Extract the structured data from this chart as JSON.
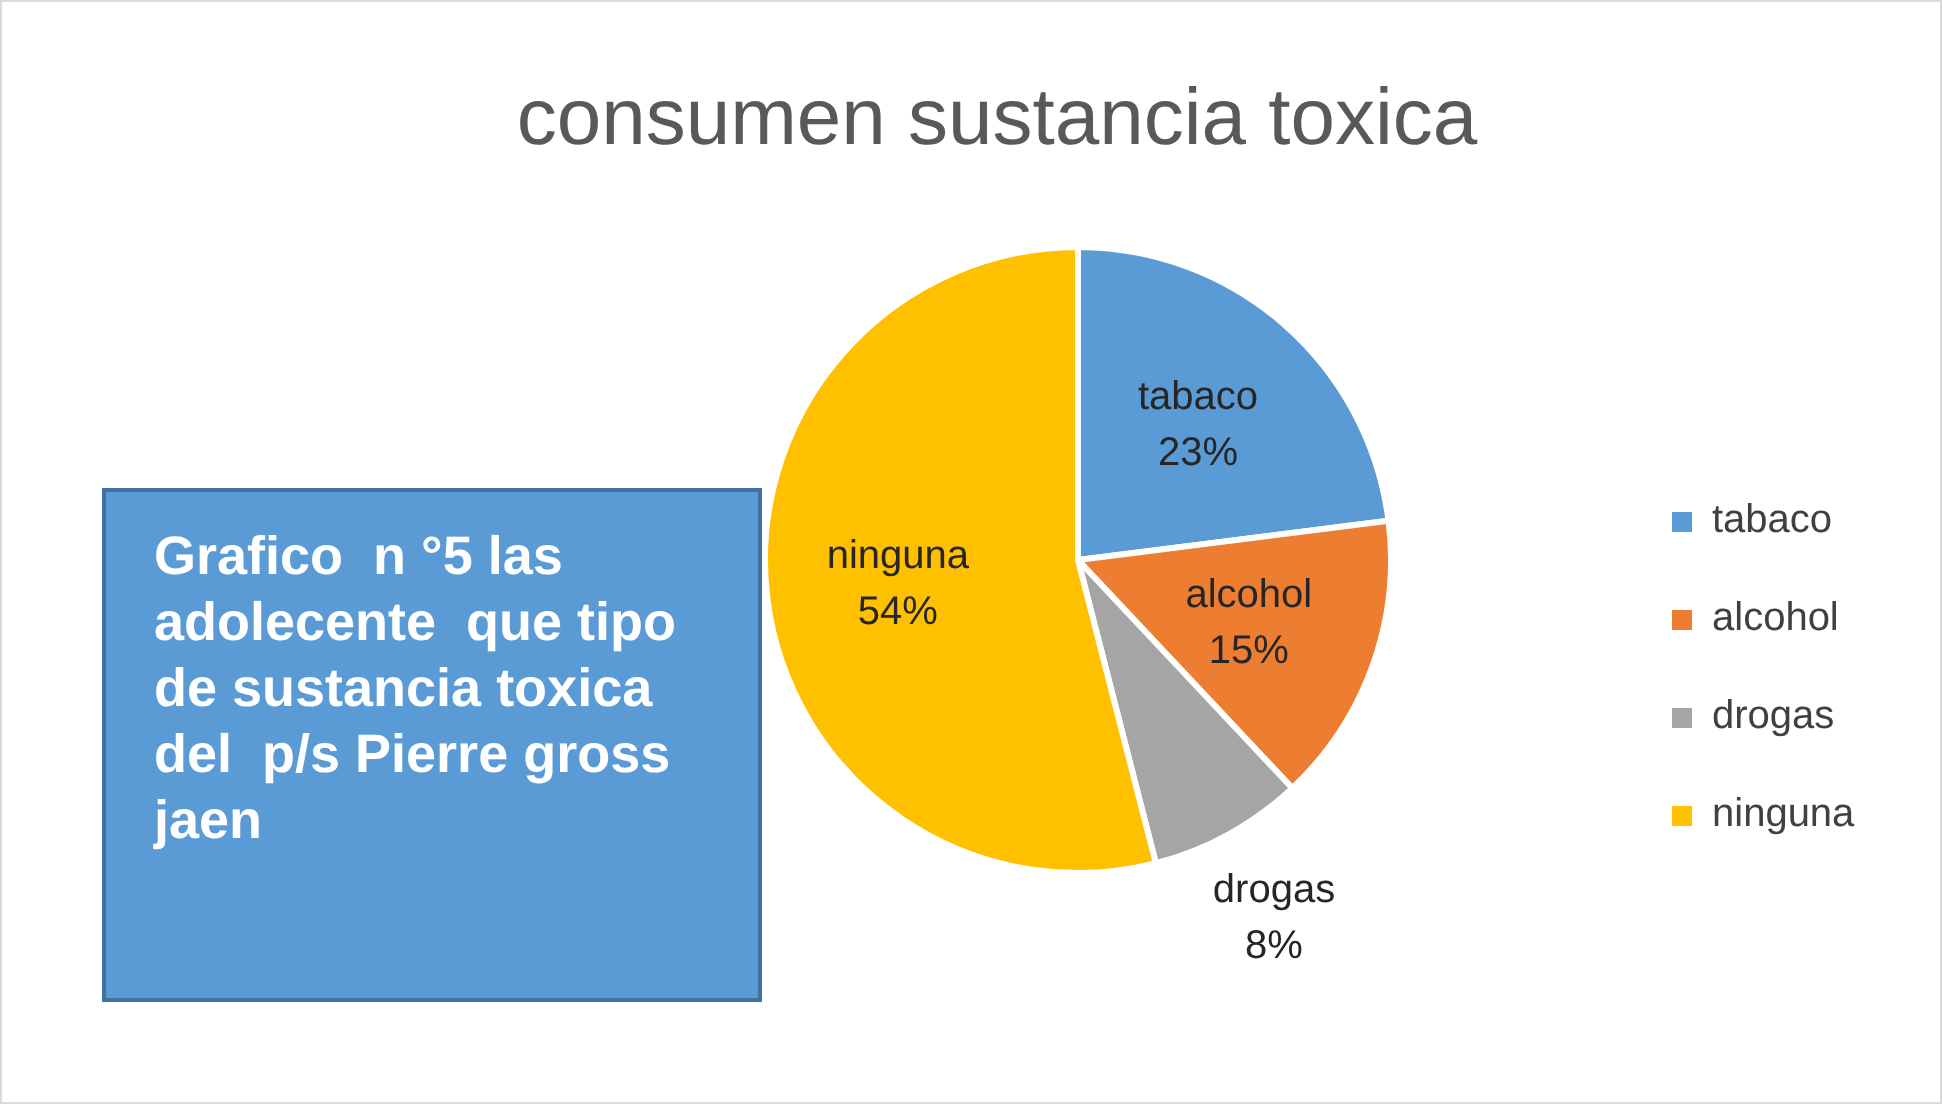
{
  "chart_data": {
    "type": "pie",
    "title": "consumen sustancia toxica",
    "categories": [
      "tabaco",
      "alcohol",
      "drogas",
      "ninguna"
    ],
    "values": [
      23,
      15,
      8,
      54
    ],
    "colors": [
      "#5b9bd5",
      "#ed7d31",
      "#a5a5a5",
      "#ffc000"
    ],
    "value_labels": [
      "23%",
      "15%",
      "8%",
      "54%"
    ],
    "legend": "right",
    "annotations": [
      "Grafico  n °5 las adolecente  que tipo de sustancia toxica  del  p/s Pierre gross jaen"
    ]
  }
}
